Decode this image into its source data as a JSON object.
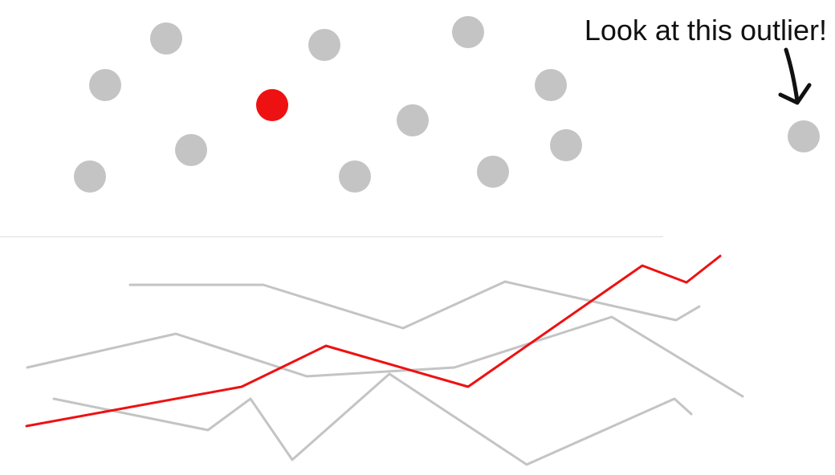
{
  "colors": {
    "highlight": "#ee1111",
    "muted": "#c4c4c4",
    "divider": "#ececec",
    "ink": "#111111"
  },
  "annotation": {
    "text": "Look at this outlier!",
    "icon": "hand-drawn-arrow-icon"
  },
  "chart_data": [
    {
      "type": "scatter",
      "title": "",
      "xlabel": "",
      "ylabel": "",
      "grid": false,
      "axes_visible": false,
      "xlim": [
        0,
        1040
      ],
      "ylim": [
        0,
        300
      ],
      "series": [
        {
          "role": "muted",
          "points": [
            {
              "x": 207,
              "y": 252
            },
            {
              "x": 404,
              "y": 244
            },
            {
              "x": 583,
              "y": 260
            },
            {
              "x": 131,
              "y": 194
            },
            {
              "x": 686,
              "y": 194
            },
            {
              "x": 514,
              "y": 150
            },
            {
              "x": 238,
              "y": 113
            },
            {
              "x": 705,
              "y": 119
            },
            {
              "x": 112,
              "y": 80
            },
            {
              "x": 442,
              "y": 80
            },
            {
              "x": 614,
              "y": 86
            },
            {
              "x": 1001,
              "y": 130
            }
          ]
        },
        {
          "role": "highlight",
          "points": [
            {
              "x": 339,
              "y": 169
            }
          ]
        }
      ]
    },
    {
      "type": "line",
      "title": "",
      "xlabel": "",
      "ylabel": "",
      "grid": false,
      "axes_visible": false,
      "xlim": [
        0,
        1040
      ],
      "ylim": [
        0,
        300
      ],
      "series": [
        {
          "role": "muted",
          "x": [
            162,
            328,
            502,
            629,
            842,
            871
          ],
          "y": [
            237,
            237,
            183,
            241,
            193,
            210
          ]
        },
        {
          "role": "muted",
          "x": [
            34,
            219,
            382,
            566,
            762,
            925
          ],
          "y": [
            134,
            176,
            123,
            134,
            197,
            98
          ]
        },
        {
          "role": "muted",
          "x": [
            67,
            259,
            312,
            364,
            485,
            656,
            840,
            861
          ],
          "y": [
            95,
            56,
            95,
            19,
            126,
            13,
            95,
            76
          ]
        },
        {
          "role": "highlight",
          "x": [
            33,
            301,
            406,
            583,
            800,
            855,
            897
          ],
          "y": [
            61,
            110,
            161,
            110,
            261,
            240,
            273
          ]
        }
      ]
    }
  ]
}
